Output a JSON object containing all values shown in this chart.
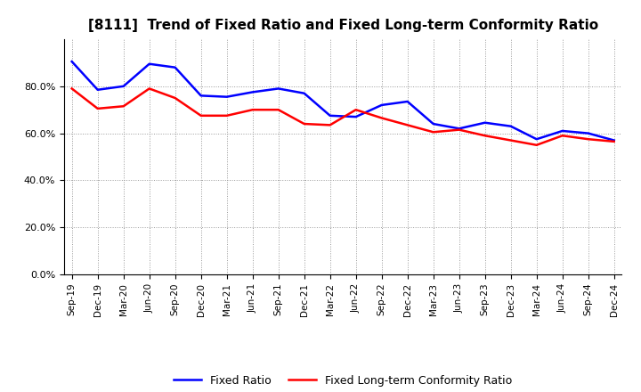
{
  "title": "[8111]  Trend of Fixed Ratio and Fixed Long-term Conformity Ratio",
  "x_labels": [
    "Sep-19",
    "Dec-19",
    "Mar-20",
    "Jun-20",
    "Sep-20",
    "Dec-20",
    "Mar-21",
    "Jun-21",
    "Sep-21",
    "Dec-21",
    "Mar-22",
    "Jun-22",
    "Sep-22",
    "Dec-22",
    "Mar-23",
    "Jun-23",
    "Sep-23",
    "Dec-23",
    "Mar-24",
    "Jun-24",
    "Sep-24",
    "Dec-24"
  ],
  "fixed_ratio": [
    90.5,
    78.5,
    80.0,
    89.5,
    88.0,
    76.0,
    75.5,
    77.5,
    79.0,
    77.0,
    67.5,
    67.0,
    72.0,
    73.5,
    64.0,
    62.0,
    64.5,
    63.0,
    57.5,
    61.0,
    60.0,
    57.0
  ],
  "fixed_lt_ratio": [
    79.0,
    70.5,
    71.5,
    79.0,
    75.0,
    67.5,
    67.5,
    70.0,
    70.0,
    64.0,
    63.5,
    70.0,
    66.5,
    63.5,
    60.5,
    61.5,
    59.0,
    57.0,
    55.0,
    59.0,
    57.5,
    56.5
  ],
  "fixed_ratio_color": "#0000FF",
  "fixed_lt_ratio_color": "#FF0000",
  "ylim": [
    0,
    100
  ],
  "yticks": [
    0,
    20,
    40,
    60,
    80
  ],
  "ytick_labels": [
    "0.0%",
    "20.0%",
    "40.0%",
    "60.0%",
    "80.0%"
  ],
  "background_color": "#FFFFFF",
  "plot_bg_color": "#FFFFFF",
  "grid_color": "#999999",
  "legend_fixed_ratio": "Fixed Ratio",
  "legend_fixed_lt_ratio": "Fixed Long-term Conformity Ratio"
}
